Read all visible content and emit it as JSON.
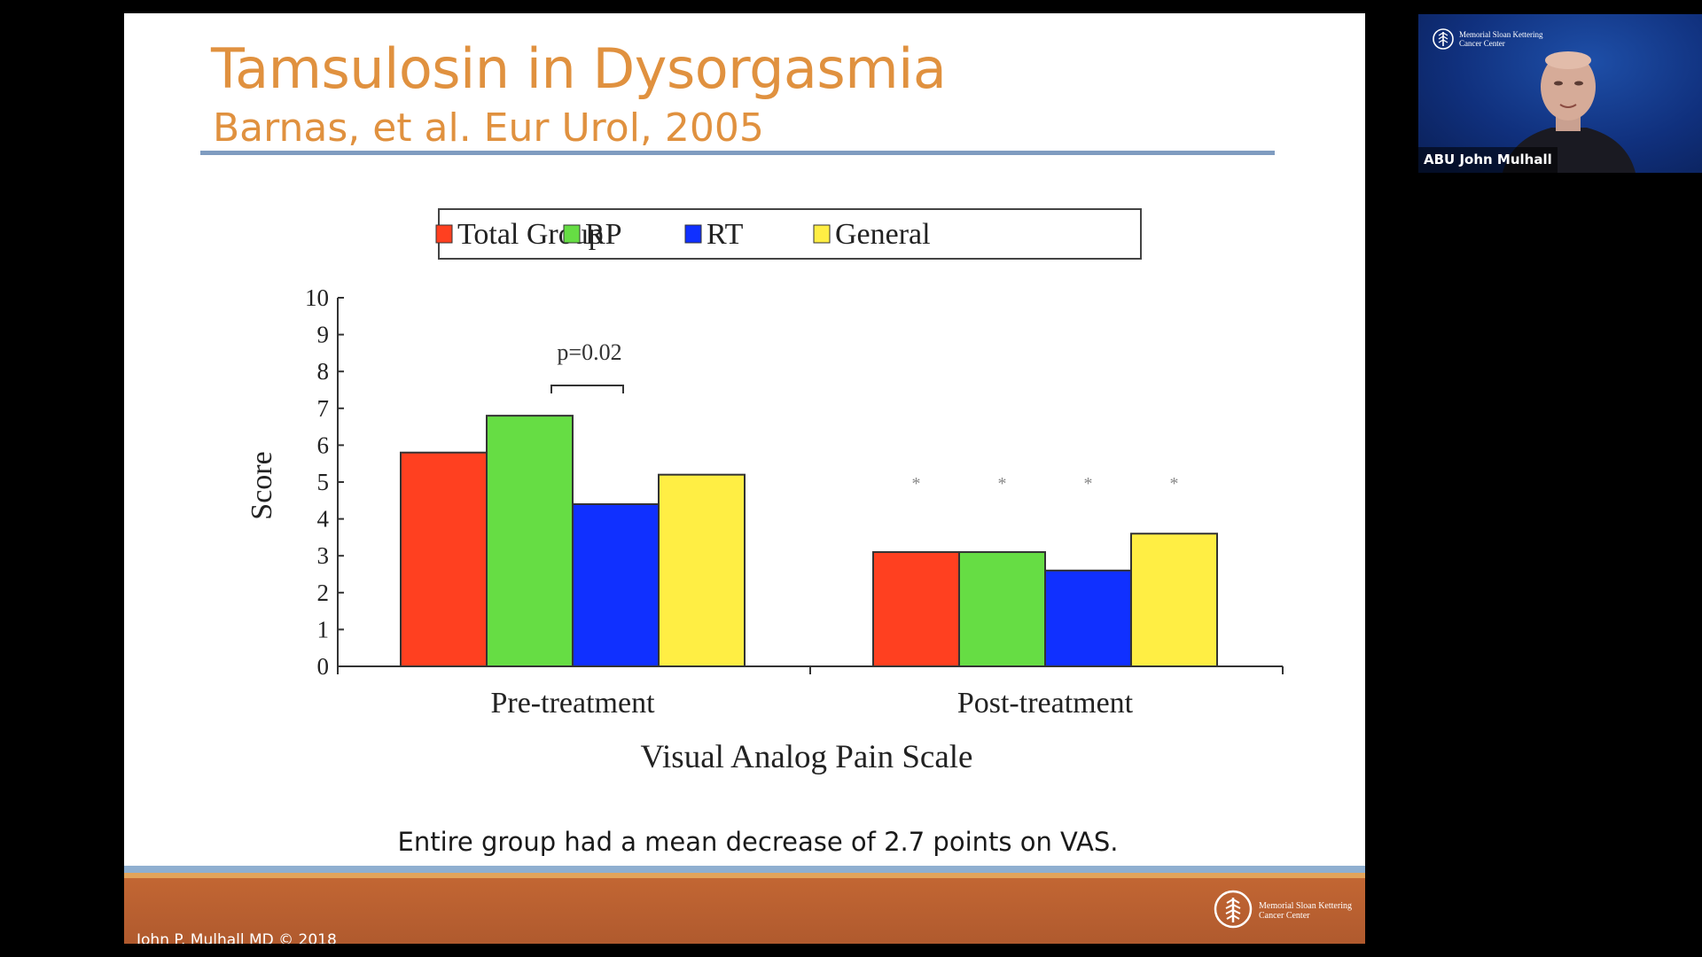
{
  "slide": {
    "title": "Tamsulosin in Dysorgasmia",
    "subtitle": "Barnas, et al. Eur Urol, 2005",
    "caption": "Entire group had a mean decrease of 2.7 points on VAS.",
    "footer_author": "John P. Mulhall MD © 2018",
    "footer_logo_text": "Memorial Sloan Kettering Cancer Center"
  },
  "webcam": {
    "participant_name": "ABU John Mulhall",
    "logo_text": "Memorial Sloan Kettering Cancer Center"
  },
  "colors": {
    "title": "#e0913f",
    "total_group": "#ff4020",
    "rp": "#66dd44",
    "rt": "#1030ff",
    "general": "#ffee44",
    "footer": "#b85e30"
  },
  "chart_data": {
    "type": "bar",
    "categories": [
      "Pre-treatment",
      "Post-treatment"
    ],
    "series": [
      {
        "name": "Total Group",
        "values": [
          5.8,
          3.1
        ]
      },
      {
        "name": "RP",
        "values": [
          6.8,
          3.1
        ]
      },
      {
        "name": "RT",
        "values": [
          4.4,
          2.6
        ]
      },
      {
        "name": "General",
        "values": [
          5.2,
          3.6
        ]
      }
    ],
    "xlabel": "Visual Analog Pain Scale",
    "ylabel": "Score",
    "ylim": [
      0,
      10
    ],
    "yticks": [
      "0",
      "1",
      "2",
      "3",
      "4",
      "5",
      "6",
      "7",
      "8",
      "9",
      "10"
    ],
    "legend_position": "top",
    "grid": false,
    "annotations": {
      "pre_treatment_pvalue": "p=0.02",
      "post_treatment_markers": [
        "*",
        "*",
        "*",
        "*"
      ]
    }
  }
}
